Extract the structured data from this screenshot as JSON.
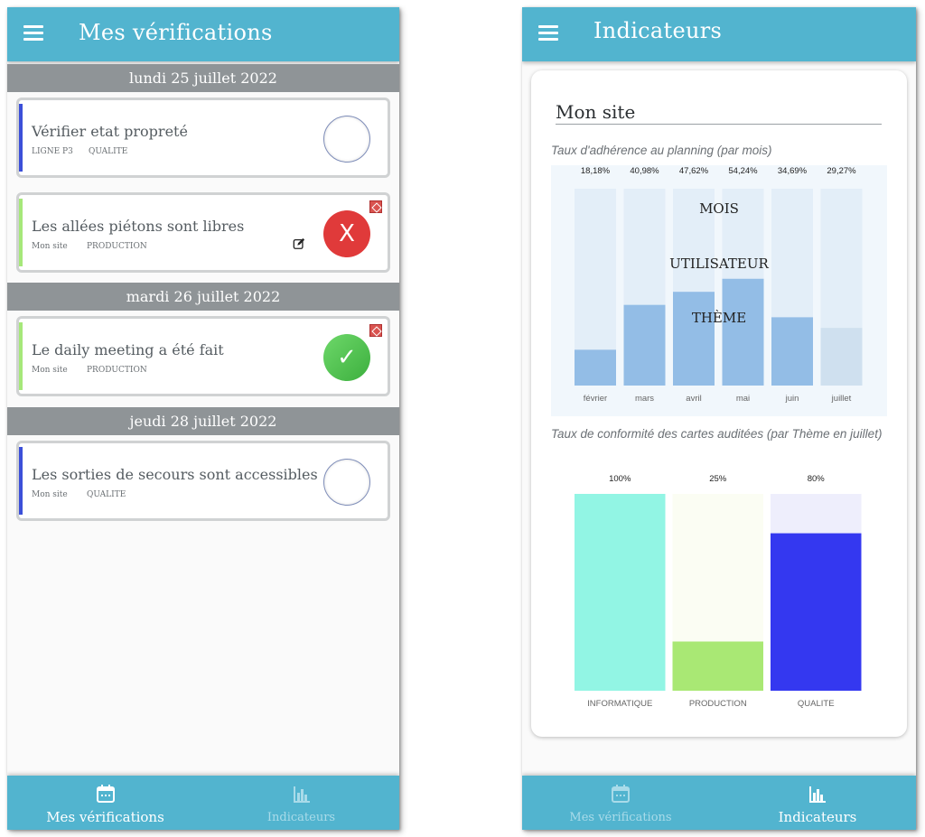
{
  "left_screen": {
    "title": "Mes vérifications",
    "groups": [
      {
        "date": "lundi 25 juillet 2022",
        "items": [
          {
            "title": "Vérifier etat propreté",
            "site": "LIGNE P3",
            "theme": "QUALITE",
            "status": "pending",
            "accent": "#3b4fd9"
          },
          {
            "title": "Les allées piétons sont libres",
            "site": "Mon site",
            "theme": "PRODUCTION",
            "status": "failed",
            "status_glyph": "X",
            "accent": "#a6e87a"
          }
        ]
      },
      {
        "date": "mardi 26 juillet 2022",
        "items": [
          {
            "title": "Le daily meeting a été fait",
            "site": "Mon site",
            "theme": "PRODUCTION",
            "status": "passed",
            "status_glyph": "✓",
            "accent": "#a6e87a"
          }
        ]
      },
      {
        "date": "jeudi 28 juillet 2022",
        "items": [
          {
            "title": "Les sorties de secours sont accessibles",
            "site": "Mon site",
            "theme": "QUALITE",
            "status": "pending",
            "accent": "#3b4fd9"
          }
        ]
      }
    ]
  },
  "right_screen": {
    "title": "Indicateurs",
    "site_name": "Mon site",
    "popup_options": [
      "MOIS",
      "UTILISATEUR",
      "THÈME"
    ]
  },
  "bottom_nav": {
    "verifications_label": "Mes vérifications",
    "indicators_label": "Indicateurs"
  },
  "colors": {
    "primary": "#52b4cf",
    "date_header": "#8f9497",
    "fail": "#e03a3a",
    "success": "#4fc14c"
  },
  "chart_data": [
    {
      "type": "bar",
      "title": "Taux d'adhérence au planning (par mois)",
      "categories": [
        "février",
        "mars",
        "avril",
        "mai",
        "juin",
        "juillet"
      ],
      "values": [
        18.18,
        40.98,
        47.62,
        54.24,
        34.69,
        29.27
      ],
      "value_labels": [
        "18,18%",
        "40,98%",
        "47,62%",
        "54,24%",
        "34,69%",
        "29,27%"
      ],
      "ylim": [
        0,
        100
      ],
      "bar_colors": [
        "#93bde6",
        "#93bde6",
        "#93bde6",
        "#93bde6",
        "#93bde6",
        "#cfe0ef"
      ]
    },
    {
      "type": "bar",
      "title": "Taux de conformité des cartes auditées (par Thème en juillet)",
      "categories": [
        "INFORMATIQUE",
        "PRODUCTION",
        "QUALITE"
      ],
      "values": [
        100,
        25,
        80
      ],
      "value_labels": [
        "100%",
        "25%",
        "80%"
      ],
      "ylim": [
        0,
        100
      ],
      "bar_colors": [
        "#92f5e4",
        "#a9e874",
        "#3438f0"
      ],
      "track_colors": [
        "#e6fbf6",
        "#fbfdf3",
        "#eeeefc"
      ]
    }
  ]
}
